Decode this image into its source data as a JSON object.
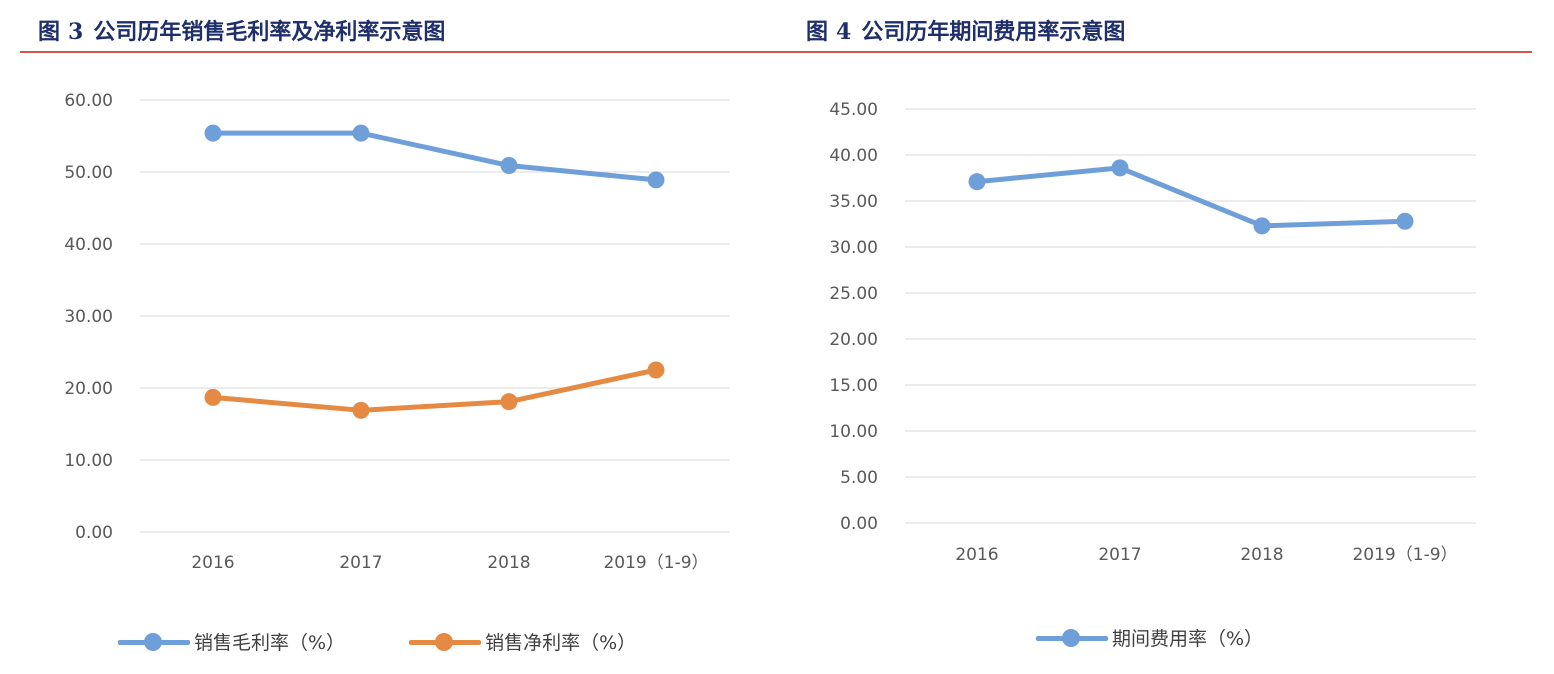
{
  "figures": [
    {
      "fig_label": "图",
      "fig_number": "3",
      "fig_caption": "公司历年销售毛利率及净利率示意图"
    },
    {
      "fig_label": "图",
      "fig_number": "4",
      "fig_caption": "公司历年期间费用率示意图"
    }
  ],
  "colors": {
    "blue": "#6f9fd8",
    "orange": "#e58a43",
    "rule": "#d9534f",
    "title": "#1f2f6b",
    "grid": "#d9d9d9"
  },
  "chart_data": [
    {
      "type": "line",
      "categories": [
        "2016",
        "2017",
        "2018",
        "2019（1-9）"
      ],
      "series": [
        {
          "name": "销售毛利率（%）",
          "color": "#6f9fd8",
          "values": [
            55.4,
            55.4,
            50.9,
            48.9
          ]
        },
        {
          "name": "销售净利率（%）",
          "color": "#e58a43",
          "values": [
            18.7,
            16.9,
            18.1,
            22.5
          ]
        }
      ],
      "yticks": [
        "0.00",
        "10.00",
        "20.00",
        "30.00",
        "40.00",
        "50.00",
        "60.00"
      ],
      "ylim": [
        0,
        60
      ],
      "grid": true,
      "legend_position": "bottom"
    },
    {
      "type": "line",
      "categories": [
        "2016",
        "2017",
        "2018",
        "2019（1-9）"
      ],
      "series": [
        {
          "name": "期间费用率（%）",
          "color": "#6f9fd8",
          "values": [
            37.1,
            38.6,
            32.3,
            32.8
          ]
        }
      ],
      "yticks": [
        "0.00",
        "5.00",
        "10.00",
        "15.00",
        "20.00",
        "25.00",
        "30.00",
        "35.00",
        "40.00",
        "45.00"
      ],
      "ylim": [
        0,
        45
      ],
      "grid": true,
      "legend_position": "bottom"
    }
  ]
}
